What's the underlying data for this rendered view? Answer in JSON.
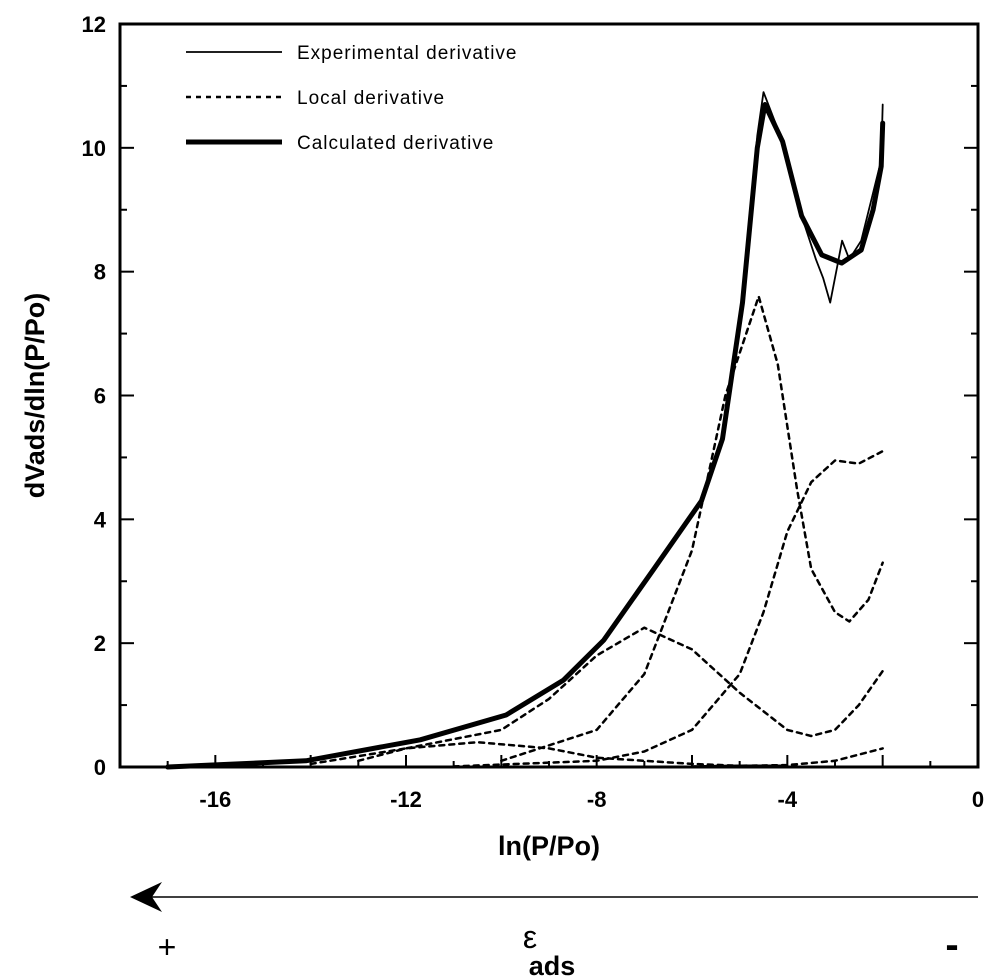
{
  "chart_data": {
    "type": "line",
    "xlabel": "ln(P/Po)",
    "ylabel": "dVads/dln(P/Po)",
    "xlim": [
      -18,
      0
    ],
    "ylim": [
      0,
      12
    ],
    "xticks": [
      -16,
      -12,
      -8,
      -4,
      0
    ],
    "yticks": [
      0,
      2,
      4,
      6,
      8,
      10,
      12
    ],
    "grid": false,
    "legend_placement": "top-left",
    "series": [
      {
        "name": "Experimental derivative",
        "style": "solid-thin",
        "points": [
          [
            -17,
            0
          ],
          [
            -14.1,
            0.1
          ],
          [
            -11.7,
            0.44
          ],
          [
            -9.9,
            0.84
          ],
          [
            -8.7,
            1.4
          ],
          [
            -7.85,
            2.05
          ],
          [
            -6.8,
            3.2
          ],
          [
            -5.8,
            4.3
          ],
          [
            -5.36,
            5.3
          ],
          [
            -4.94,
            7.6
          ],
          [
            -4.63,
            10.2
          ],
          [
            -4.5,
            10.9
          ],
          [
            -4.1,
            10.1
          ],
          [
            -3.7,
            8.9
          ],
          [
            -3.4,
            8.2
          ],
          [
            -3.25,
            7.9
          ],
          [
            -3.1,
            7.5
          ],
          [
            -2.95,
            8.1
          ],
          [
            -2.85,
            8.5
          ],
          [
            -2.7,
            8.2
          ],
          [
            -2.45,
            8.5
          ],
          [
            -2.03,
            9.8
          ],
          [
            -2.0,
            10.7
          ]
        ]
      },
      {
        "name": "Local derivative",
        "style": "dashed",
        "points": [
          [
            -10,
            0.1
          ],
          [
            -8,
            0.6
          ],
          [
            -7,
            1.5
          ],
          [
            -6,
            3.5
          ],
          [
            -5.3,
            6
          ],
          [
            -4.6,
            7.6
          ],
          [
            -4.2,
            6.5
          ],
          [
            -3.8,
            4.5
          ],
          [
            -3.5,
            3.2
          ],
          [
            -3,
            2.5
          ],
          [
            -2.7,
            2.35
          ],
          [
            -2.3,
            2.7
          ],
          [
            -2,
            3.3
          ]
        ]
      },
      {
        "name": "",
        "style": "dashed",
        "points": [
          [
            -13,
            0.1
          ],
          [
            -12,
            0.3
          ],
          [
            -10,
            0.6
          ],
          [
            -9,
            1.1
          ],
          [
            -8,
            1.8
          ],
          [
            -7,
            2.25
          ],
          [
            -6,
            1.9
          ],
          [
            -5,
            1.2
          ],
          [
            -4,
            0.6
          ],
          [
            -3.5,
            0.5
          ],
          [
            -3,
            0.6
          ],
          [
            -2.5,
            1.0
          ],
          [
            -2,
            1.55
          ]
        ]
      },
      {
        "name": "",
        "style": "dashed",
        "points": [
          [
            -11,
            0.01
          ],
          [
            -8,
            0.1
          ],
          [
            -7,
            0.25
          ],
          [
            -6,
            0.6
          ],
          [
            -5,
            1.5
          ],
          [
            -4.5,
            2.5
          ],
          [
            -4,
            3.8
          ],
          [
            -3.5,
            4.6
          ],
          [
            -3,
            4.95
          ],
          [
            -2.5,
            4.9
          ],
          [
            -2,
            5.1
          ]
        ]
      },
      {
        "name": "",
        "style": "dashed",
        "points": [
          [
            -14,
            0.05
          ],
          [
            -12,
            0.3
          ],
          [
            -10.5,
            0.4
          ],
          [
            -9,
            0.3
          ],
          [
            -8,
            0.15
          ],
          [
            -6,
            0.05
          ],
          [
            -5,
            0.02
          ],
          [
            -4,
            0.02
          ]
        ]
      },
      {
        "name": "",
        "style": "dashed",
        "points": [
          [
            -6,
            0.01
          ],
          [
            -4,
            0.03
          ],
          [
            -3,
            0.1
          ],
          [
            -2.5,
            0.2
          ],
          [
            -2,
            0.3
          ]
        ]
      },
      {
        "name": "Calculated derivative",
        "style": "solid-thick",
        "points": [
          [
            -17,
            0
          ],
          [
            -14.1,
            0.1
          ],
          [
            -11.7,
            0.44
          ],
          [
            -9.9,
            0.84
          ],
          [
            -8.7,
            1.4
          ],
          [
            -7.85,
            2.05
          ],
          [
            -6.8,
            3.2
          ],
          [
            -5.8,
            4.3
          ],
          [
            -5.36,
            5.3
          ],
          [
            -4.94,
            7.5
          ],
          [
            -4.63,
            10
          ],
          [
            -4.47,
            10.7
          ],
          [
            -4.1,
            10.1
          ],
          [
            -3.7,
            8.9
          ],
          [
            -3.28,
            8.27
          ],
          [
            -2.86,
            8.14
          ],
          [
            -2.45,
            8.35
          ],
          [
            -2.2,
            9.0
          ],
          [
            -2.03,
            9.7
          ],
          [
            -2.0,
            10.4
          ]
        ]
      }
    ],
    "annotation": {
      "arrow_direction": "left",
      "plus_label": "+",
      "minus_label": "-",
      "epsilon_label": "ε",
      "epsilon_subscript": "ads"
    }
  }
}
